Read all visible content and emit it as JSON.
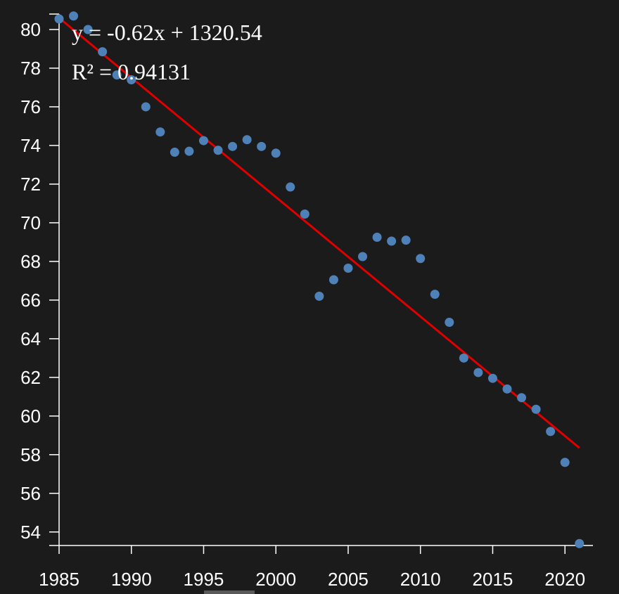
{
  "chart_data": {
    "type": "scatter",
    "title": "",
    "xlabel": "",
    "ylabel": "",
    "xlim": [
      1985,
      2021.5
    ],
    "ylim": [
      53.3,
      80.8
    ],
    "x_ticks": [
      1985,
      1990,
      1995,
      2000,
      2005,
      2010,
      2015,
      2020
    ],
    "y_ticks": [
      54,
      56,
      58,
      60,
      62,
      64,
      66,
      68,
      70,
      72,
      74,
      76,
      78,
      80
    ],
    "grid": false,
    "legend": "none",
    "series": [
      {
        "x": [
          1985,
          1986,
          1987,
          1988,
          1989,
          1990,
          1991,
          1992,
          1993,
          1994,
          1995,
          1996,
          1997,
          1998,
          1999,
          2000,
          2001,
          2002,
          2003,
          2004,
          2005,
          2006,
          2007,
          2008,
          2009,
          2010,
          2011,
          2012,
          2013,
          2014,
          2015,
          2016,
          2017,
          2018,
          2019,
          2020,
          2021
        ],
        "y": [
          80.55,
          80.7,
          80.0,
          78.85,
          77.65,
          77.4,
          76.0,
          74.7,
          73.65,
          73.7,
          74.25,
          73.75,
          73.95,
          74.3,
          73.95,
          73.6,
          71.85,
          70.45,
          66.2,
          67.05,
          67.65,
          68.25,
          69.25,
          69.05,
          69.1,
          68.15,
          66.3,
          64.85,
          63.0,
          62.25,
          61.95,
          61.4,
          60.95,
          60.35,
          59.2,
          57.6,
          53.4
        ],
        "color": "#4f81b9"
      }
    ],
    "trendline": {
      "slope": -0.62,
      "intercept": 1320.54,
      "x_range": [
        1985,
        2021
      ],
      "y_range": [
        80.6,
        58.35
      ],
      "color": "#e00000"
    },
    "annotations": {
      "equation": "y = -0.62x + 1320.54",
      "r_squared": "R² = 0.94131"
    }
  },
  "colors": {
    "background": "#1b1b1b",
    "axis": "#ffffff",
    "text": "#ffffff"
  }
}
